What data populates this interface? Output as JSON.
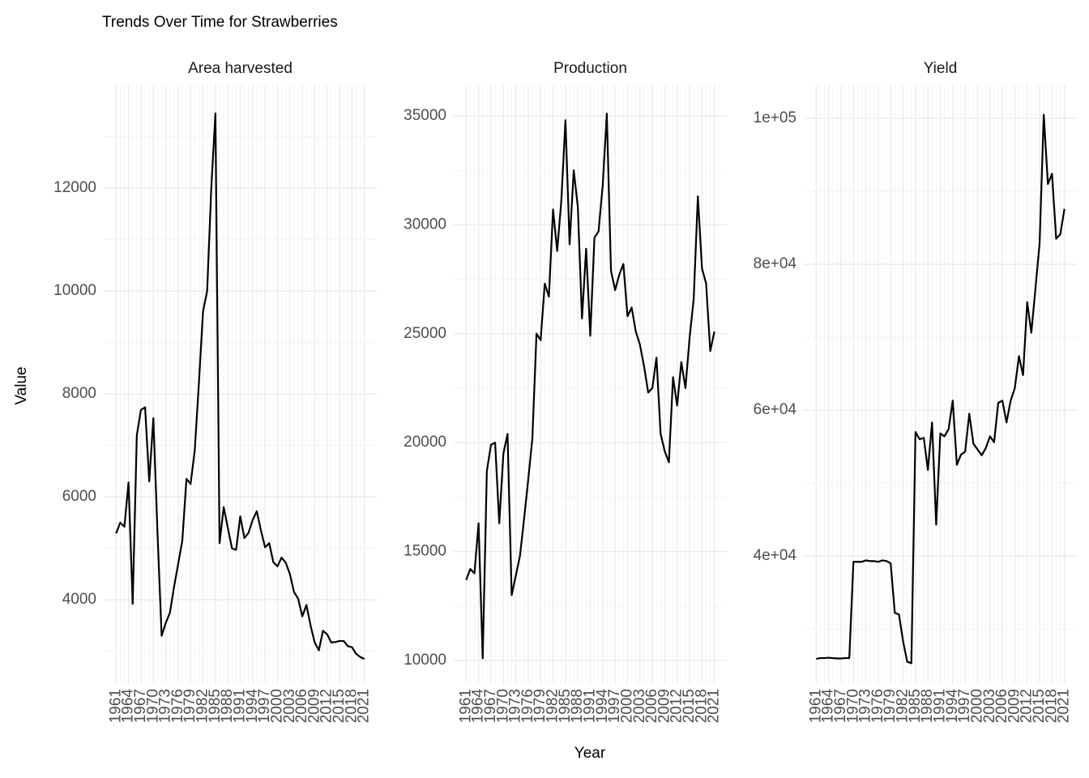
{
  "chart_data": {
    "type": "line",
    "title": "Trends Over Time for Strawberries",
    "x_label": "Year",
    "y_label": "Value",
    "color": "#000000",
    "grid": true,
    "x": [
      1961,
      1962,
      1963,
      1964,
      1965,
      1966,
      1967,
      1968,
      1969,
      1970,
      1971,
      1972,
      1973,
      1974,
      1975,
      1976,
      1977,
      1978,
      1979,
      1980,
      1981,
      1982,
      1983,
      1984,
      1985,
      1986,
      1987,
      1988,
      1989,
      1990,
      1991,
      1992,
      1993,
      1994,
      1995,
      1996,
      1997,
      1998,
      1999,
      2000,
      2001,
      2002,
      2003,
      2004,
      2005,
      2006,
      2007,
      2008,
      2009,
      2010,
      2011,
      2012,
      2013,
      2014,
      2015,
      2016,
      2017,
      2018,
      2019,
      2020,
      2021
    ],
    "xlim": [
      1958,
      2024
    ],
    "xticks": [
      1961,
      1964,
      1967,
      1970,
      1973,
      1976,
      1979,
      1982,
      1985,
      1988,
      1991,
      1994,
      1997,
      2000,
      2003,
      2006,
      2009,
      2012,
      2015,
      2018,
      2021
    ],
    "series": [
      {
        "name": "Area harvested",
        "ylim": [
          2380,
          14000
        ],
        "yticks": [
          4000,
          6000,
          8000,
          10000,
          12000
        ],
        "values": [
          5290,
          5500,
          5420,
          6280,
          3920,
          7200,
          7690,
          7740,
          6300,
          7530,
          5300,
          3300,
          3550,
          3750,
          4250,
          4700,
          5150,
          6350,
          6250,
          6900,
          8200,
          9600,
          10000,
          12000,
          13450,
          5100,
          5800,
          5400,
          5000,
          4970,
          5620,
          5200,
          5300,
          5550,
          5720,
          5350,
          5020,
          5100,
          4730,
          4650,
          4820,
          4720,
          4500,
          4150,
          4020,
          3680,
          3900,
          3500,
          3170,
          3020,
          3400,
          3330,
          3170,
          3180,
          3200,
          3200,
          3100,
          3080,
          2950,
          2890,
          2850
        ]
      },
      {
        "name": "Production",
        "ylim": [
          8960,
          36410
        ],
        "yticks": [
          10000,
          15000,
          20000,
          25000,
          30000,
          35000
        ],
        "values": [
          13700,
          14200,
          14000,
          16300,
          10100,
          18700,
          19900,
          20000,
          16300,
          19500,
          20400,
          13000,
          13900,
          14800,
          16500,
          18300,
          20200,
          25000,
          24700,
          27300,
          26700,
          30700,
          28800,
          31100,
          34800,
          29100,
          32500,
          30800,
          25700,
          28900,
          24900,
          29400,
          29700,
          31800,
          35100,
          27900,
          27000,
          27700,
          28200,
          25800,
          26200,
          25100,
          24500,
          23500,
          22300,
          22500,
          23900,
          20400,
          19600,
          19100,
          23000,
          21700,
          23700,
          22500,
          24800,
          26600,
          31300,
          28000,
          27300,
          24200,
          25100
        ]
      },
      {
        "name": "Yield",
        "ylim": [
          22560,
          104560
        ],
        "yticks": [
          {
            "value": 40000,
            "label": "4e+04"
          },
          {
            "value": 60000,
            "label": "6e+04"
          },
          {
            "value": 80000,
            "label": "8e+04"
          },
          {
            "value": 100000,
            "label": "1e+05"
          }
        ],
        "values": [
          25900,
          26000,
          26000,
          26050,
          26000,
          25950,
          25950,
          26000,
          26000,
          39200,
          39200,
          39200,
          39400,
          39300,
          39300,
          39200,
          39400,
          39300,
          39000,
          32200,
          32000,
          28300,
          25500,
          25300,
          57000,
          56000,
          56200,
          51800,
          58300,
          44300,
          56800,
          56400,
          57400,
          61300,
          52500,
          53900,
          54300,
          59500,
          55400,
          54600,
          53800,
          54800,
          56400,
          55600,
          61000,
          61300,
          58300,
          61300,
          63000,
          67400,
          64800,
          74800,
          70600,
          76700,
          82900,
          100500,
          91000,
          92400,
          83500,
          84100,
          87600
        ]
      }
    ]
  }
}
